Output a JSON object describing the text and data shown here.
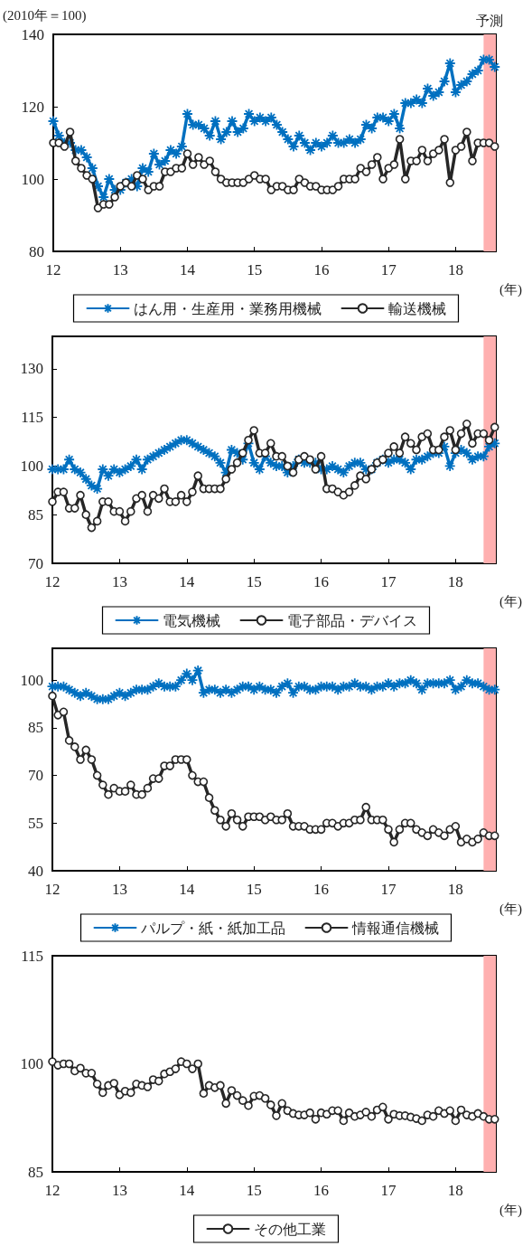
{
  "chart_data": [
    {
      "type": "line",
      "ylabel": "(2010年＝100)",
      "xlabel": "(年)",
      "legend": "bottom",
      "xlim": [
        12,
        18.6
      ],
      "ylim": [
        80,
        140
      ],
      "xticks": [
        12,
        13,
        14,
        15,
        16,
        17,
        18
      ],
      "yticks": [
        80,
        100,
        120,
        140
      ],
      "bands": [
        {
          "axis": "x",
          "from": 18.417,
          "to": 18.6,
          "label": "予測",
          "color": "#ffb0b0"
        }
      ],
      "x": [
        12,
        12.083,
        12.167,
        12.25,
        12.333,
        12.417,
        12.5,
        12.583,
        12.667,
        12.75,
        12.833,
        12.917,
        13,
        13.083,
        13.167,
        13.25,
        13.333,
        13.417,
        13.5,
        13.583,
        13.667,
        13.75,
        13.833,
        13.917,
        14,
        14.083,
        14.167,
        14.25,
        14.333,
        14.417,
        14.5,
        14.583,
        14.667,
        14.75,
        14.833,
        14.917,
        15,
        15.083,
        15.167,
        15.25,
        15.333,
        15.417,
        15.5,
        15.583,
        15.667,
        15.75,
        15.833,
        15.917,
        16,
        16.083,
        16.167,
        16.25,
        16.333,
        16.417,
        16.5,
        16.583,
        16.667,
        16.75,
        16.833,
        16.917,
        17,
        17.083,
        17.167,
        17.25,
        17.333,
        17.417,
        17.5,
        17.583,
        17.667,
        17.75,
        17.833,
        17.917,
        18,
        18.083,
        18.167,
        18.25,
        18.333,
        18.417,
        18.5,
        18.583
      ],
      "series": [
        {
          "name": "はん用・生産用・業務用機械",
          "color": "#0070c0",
          "marker": "cross",
          "values": [
            116,
            112,
            110,
            110,
            108,
            108,
            106,
            103,
            98,
            95,
            100,
            97,
            97,
            99,
            100,
            98,
            103,
            102,
            107,
            104,
            105,
            108,
            107,
            109,
            118,
            115,
            115,
            114,
            112,
            116,
            111,
            113,
            116,
            113,
            114,
            118,
            116,
            117,
            116,
            117,
            115,
            113,
            111,
            109,
            112,
            110,
            108,
            110,
            109,
            110,
            112,
            110,
            110,
            111,
            110,
            111,
            115,
            114,
            117,
            117,
            116,
            118,
            114,
            121,
            121,
            122,
            121,
            125,
            123,
            124,
            127,
            132,
            124,
            126,
            127,
            129,
            130,
            133,
            133,
            131
          ]
        },
        {
          "name": "輸送機械",
          "color": "#262626",
          "marker": "circle",
          "values": [
            110,
            110,
            109,
            113,
            105,
            103,
            101,
            100,
            92,
            93,
            93,
            95,
            98,
            99,
            98,
            101,
            100,
            97,
            98,
            98,
            102,
            102,
            103,
            103,
            107,
            104,
            106,
            104,
            105,
            102,
            100,
            99,
            99,
            99,
            99,
            100,
            101,
            100,
            100,
            97,
            98,
            98,
            97,
            97,
            100,
            99,
            98,
            98,
            97,
            97,
            97,
            98,
            100,
            100,
            100,
            103,
            102,
            104,
            106,
            100,
            103,
            104,
            111,
            100,
            105,
            105,
            108,
            105,
            107,
            108,
            111,
            99,
            108,
            109,
            113,
            105,
            110,
            110,
            110,
            109
          ]
        }
      ]
    },
    {
      "type": "line",
      "xlabel": "(年)",
      "legend": "bottom",
      "xlim": [
        12,
        18.6
      ],
      "ylim": [
        70,
        140
      ],
      "xticks": [
        12,
        13,
        14,
        15,
        16,
        17,
        18
      ],
      "yticks": [
        70,
        85,
        100,
        115,
        130
      ],
      "bands": [
        {
          "axis": "x",
          "from": 18.417,
          "to": 18.6,
          "color": "#ffb0b0"
        }
      ],
      "x": [
        12,
        12.083,
        12.167,
        12.25,
        12.333,
        12.417,
        12.5,
        12.583,
        12.667,
        12.75,
        12.833,
        12.917,
        13,
        13.083,
        13.167,
        13.25,
        13.333,
        13.417,
        13.5,
        13.583,
        13.667,
        13.75,
        13.833,
        13.917,
        14,
        14.083,
        14.167,
        14.25,
        14.333,
        14.417,
        14.5,
        14.583,
        14.667,
        14.75,
        14.833,
        14.917,
        15,
        15.083,
        15.167,
        15.25,
        15.333,
        15.417,
        15.5,
        15.583,
        15.667,
        15.75,
        15.833,
        15.917,
        16,
        16.083,
        16.167,
        16.25,
        16.333,
        16.417,
        16.5,
        16.583,
        16.667,
        16.75,
        16.833,
        16.917,
        17,
        17.083,
        17.167,
        17.25,
        17.333,
        17.417,
        17.5,
        17.583,
        17.667,
        17.75,
        17.833,
        17.917,
        18,
        18.083,
        18.167,
        18.25,
        18.333,
        18.417,
        18.5,
        18.583
      ],
      "series": [
        {
          "name": "電気機械",
          "color": "#0070c0",
          "marker": "cross",
          "values": [
            99,
            99,
            99,
            102,
            99,
            98,
            96,
            94,
            93,
            99,
            97,
            99,
            98,
            99,
            100,
            102,
            99,
            102,
            103,
            104,
            105,
            106,
            107,
            108,
            108,
            107,
            106,
            105,
            104,
            103,
            101,
            98,
            105,
            104,
            102,
            107,
            101,
            99,
            103,
            101,
            100,
            100,
            98,
            100,
            102,
            101,
            101,
            101,
            99,
            99,
            100,
            99,
            98,
            100,
            101,
            101,
            99,
            99,
            101,
            102,
            101,
            102,
            102,
            101,
            99,
            102,
            102,
            103,
            104,
            104,
            106,
            100,
            104,
            105,
            104,
            102,
            103,
            103,
            106,
            107
          ]
        },
        {
          "name": "電子部品・デバイス",
          "color": "#262626",
          "marker": "circle",
          "values": [
            89,
            92,
            92,
            87,
            87,
            91,
            85,
            81,
            83,
            89,
            89,
            86,
            86,
            83,
            86,
            90,
            91,
            86,
            91,
            90,
            93,
            89,
            89,
            91,
            89,
            92,
            97,
            93,
            93,
            93,
            93,
            96,
            99,
            101,
            104,
            108,
            111,
            104,
            104,
            107,
            103,
            103,
            100,
            98,
            102,
            103,
            102,
            99,
            103,
            93,
            93,
            92,
            91,
            92,
            94,
            97,
            96,
            99,
            101,
            102,
            104,
            106,
            104,
            109,
            107,
            105,
            109,
            110,
            105,
            105,
            109,
            111,
            105,
            110,
            113,
            107,
            110,
            110,
            108,
            112
          ]
        }
      ]
    },
    {
      "type": "line",
      "xlabel": "(年)",
      "legend": "bottom",
      "xlim": [
        12,
        18.6
      ],
      "ylim": [
        40,
        110
      ],
      "xticks": [
        12,
        13,
        14,
        15,
        16,
        17,
        18
      ],
      "yticks": [
        40,
        55,
        70,
        85,
        100
      ],
      "bands": [
        {
          "axis": "x",
          "from": 18.417,
          "to": 18.6,
          "color": "#ffb0b0"
        }
      ],
      "x": [
        12,
        12.083,
        12.167,
        12.25,
        12.333,
        12.417,
        12.5,
        12.583,
        12.667,
        12.75,
        12.833,
        12.917,
        13,
        13.083,
        13.167,
        13.25,
        13.333,
        13.417,
        13.5,
        13.583,
        13.667,
        13.75,
        13.833,
        13.917,
        14,
        14.083,
        14.167,
        14.25,
        14.333,
        14.417,
        14.5,
        14.583,
        14.667,
        14.75,
        14.833,
        14.917,
        15,
        15.083,
        15.167,
        15.25,
        15.333,
        15.417,
        15.5,
        15.583,
        15.667,
        15.75,
        15.833,
        15.917,
        16,
        16.083,
        16.167,
        16.25,
        16.333,
        16.417,
        16.5,
        16.583,
        16.667,
        16.75,
        16.833,
        16.917,
        17,
        17.083,
        17.167,
        17.25,
        17.333,
        17.417,
        17.5,
        17.583,
        17.667,
        17.75,
        17.833,
        17.917,
        18,
        18.083,
        18.167,
        18.25,
        18.333,
        18.417,
        18.5,
        18.583
      ],
      "series": [
        {
          "name": "パルプ・紙・紙加工品",
          "color": "#0070c0",
          "marker": "cross",
          "values": [
            98,
            98,
            98,
            97,
            96,
            95,
            96,
            95,
            94,
            94,
            94,
            95,
            96,
            95,
            96,
            97,
            97,
            97,
            98,
            99,
            98,
            98,
            98,
            100,
            102,
            100,
            103,
            96,
            97,
            97,
            96,
            97,
            96,
            97,
            98,
            98,
            97,
            98,
            97,
            97,
            96,
            98,
            99,
            96,
            98,
            98,
            97,
            97,
            98,
            98,
            98,
            97,
            98,
            98,
            99,
            98,
            98,
            97,
            98,
            98,
            99,
            98,
            99,
            99,
            100,
            99,
            97,
            99,
            99,
            99,
            99,
            100,
            97,
            98,
            100,
            99,
            99,
            98,
            97,
            97
          ]
        },
        {
          "name": "情報通信機械",
          "color": "#262626",
          "marker": "circle",
          "values": [
            95,
            89,
            90,
            81,
            79,
            75,
            78,
            75,
            70,
            67,
            64,
            66,
            65,
            65,
            67,
            64,
            64,
            66,
            69,
            69,
            73,
            73,
            75,
            75,
            75,
            70,
            68,
            68,
            63,
            59,
            56,
            54,
            58,
            56,
            54,
            57,
            57,
            57,
            56,
            57,
            56,
            56,
            58,
            54,
            54,
            54,
            53,
            53,
            53,
            55,
            55,
            54,
            55,
            55,
            56,
            56,
            60,
            56,
            56,
            56,
            53,
            49,
            53,
            55,
            55,
            53,
            52,
            51,
            53,
            52,
            51,
            53,
            54,
            49,
            50,
            49,
            50,
            52,
            51,
            51
          ]
        }
      ]
    },
    {
      "type": "line",
      "xlabel": "(年)",
      "legend": "bottom",
      "xlim": [
        12,
        18.6
      ],
      "ylim": [
        85,
        115
      ],
      "xticks": [
        12,
        13,
        14,
        15,
        16,
        17,
        18
      ],
      "yticks": [
        85,
        100,
        115
      ],
      "bands": [
        {
          "axis": "x",
          "from": 18.417,
          "to": 18.6,
          "color": "#ffb0b0"
        }
      ],
      "x": [
        12,
        12.083,
        12.167,
        12.25,
        12.333,
        12.417,
        12.5,
        12.583,
        12.667,
        12.75,
        12.833,
        12.917,
        13,
        13.083,
        13.167,
        13.25,
        13.333,
        13.417,
        13.5,
        13.583,
        13.667,
        13.75,
        13.833,
        13.917,
        14,
        14.083,
        14.167,
        14.25,
        14.333,
        14.417,
        14.5,
        14.583,
        14.667,
        14.75,
        14.833,
        14.917,
        15,
        15.083,
        15.167,
        15.25,
        15.333,
        15.417,
        15.5,
        15.583,
        15.667,
        15.75,
        15.833,
        15.917,
        16,
        16.083,
        16.167,
        16.25,
        16.333,
        16.417,
        16.5,
        16.583,
        16.667,
        16.75,
        16.833,
        16.917,
        17,
        17.083,
        17.167,
        17.25,
        17.333,
        17.417,
        17.5,
        17.583,
        17.667,
        17.75,
        17.833,
        17.917,
        18,
        18.083,
        18.167,
        18.25,
        18.333,
        18.417,
        18.5,
        18.583
      ],
      "series": [
        {
          "name": "その他工業",
          "color": "#262626",
          "marker": "circle",
          "values": [
            100.3,
            99.8,
            100,
            100,
            99,
            99.4,
            98.7,
            98.7,
            97.2,
            96,
            97,
            97.3,
            95.7,
            96.2,
            96,
            97.2,
            97,
            96.8,
            97.8,
            97.6,
            98.6,
            98.9,
            99.3,
            100.3,
            100,
            99.3,
            100,
            95.9,
            97,
            96.7,
            97,
            94.5,
            96.3,
            95.6,
            94.9,
            94.2,
            95.5,
            95.6,
            95.2,
            94.3,
            92.8,
            94.5,
            93.5,
            93.1,
            92.9,
            92.9,
            93.2,
            92.3,
            93.2,
            93,
            93.5,
            93.5,
            92.1,
            93.2,
            92.7,
            92.9,
            93.3,
            92.7,
            93.6,
            94,
            92.3,
            93,
            92.8,
            92.8,
            92.6,
            92.4,
            92.1,
            92.9,
            92.7,
            93.5,
            93.1,
            93.5,
            92.1,
            93.6,
            92.9,
            92.7,
            93.1,
            92.7,
            92.3,
            92.3
          ]
        }
      ]
    }
  ]
}
